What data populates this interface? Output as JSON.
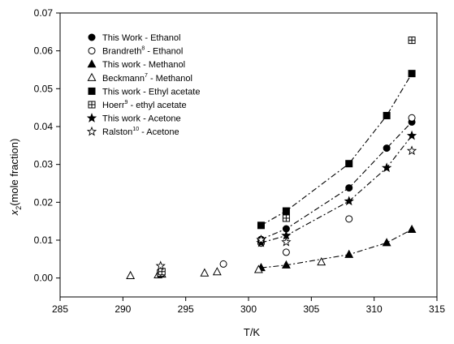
{
  "chart_data": {
    "type": "scatter",
    "xlabel": "T/K",
    "ylabel": "x",
    "ylabel_sub": "2",
    "ylabel_rest": "(mole fraction)",
    "xlim": [
      285,
      315
    ],
    "ylim": [
      -0.005,
      0.07
    ],
    "xticks": [
      285,
      290,
      295,
      300,
      305,
      310,
      315
    ],
    "xtick_labels": [
      "285",
      "290",
      "295",
      "300",
      "305",
      "310",
      "315"
    ],
    "yticks": [
      0.0,
      0.01,
      0.02,
      0.03,
      0.04,
      0.05,
      0.06,
      0.07
    ],
    "ytick_labels": [
      "0.00",
      "0.01",
      "0.02",
      "0.03",
      "0.04",
      "0.05",
      "0.06",
      "0.07"
    ],
    "grid": false,
    "legend_position": "top-left",
    "series": [
      {
        "name": "This Work - Ethanol",
        "name_pre": "This Work - Ethanol",
        "sup": "",
        "name_post": "",
        "marker": "circle-filled",
        "line": "dashdot",
        "x": [
          301,
          303,
          308,
          311,
          313
        ],
        "y": [
          0.0102,
          0.013,
          0.0238,
          0.0343,
          0.0412
        ]
      },
      {
        "name": "Brandreth8 - Ethanol",
        "name_pre": "Brandreth",
        "sup": "8",
        "name_post": " - Ethanol",
        "marker": "circle-open",
        "line": "none",
        "x": [
          298,
          301,
          303,
          308,
          313
        ],
        "y": [
          0.0037,
          0.0092,
          0.0068,
          0.0156,
          0.0423
        ]
      },
      {
        "name": "This work - Methanol",
        "name_pre": "This work - Methanol",
        "sup": "",
        "name_post": "",
        "marker": "triangle-filled",
        "line": "dashdot",
        "x": [
          301,
          303,
          308,
          311,
          313
        ],
        "y": [
          0.0027,
          0.0034,
          0.0062,
          0.0093,
          0.0128
        ]
      },
      {
        "name": "Beckmann7 - Methanol",
        "name_pre": "Beckmann",
        "sup": "7",
        "name_post": " - Methanol",
        "marker": "triangle-open",
        "line": "none",
        "x": [
          290.6,
          292.8,
          293.1,
          296.5,
          297.5,
          300.8,
          305.8
        ],
        "y": [
          0.0006,
          0.0008,
          0.001,
          0.0013,
          0.0016,
          0.0022,
          0.0042
        ]
      },
      {
        "name": "This work - Ethyl acetate",
        "name_pre": "This work - Ethyl acetate",
        "sup": "",
        "name_post": "",
        "marker": "square-filled",
        "line": "dashdot",
        "x": [
          301,
          303,
          308,
          311,
          313
        ],
        "y": [
          0.0139,
          0.0177,
          0.0302,
          0.0429,
          0.054
        ]
      },
      {
        "name": "Hoerr9 - ethyl acetate",
        "name_pre": "Hoerr",
        "sup": "9",
        "name_post": " - ethyl acetate",
        "marker": "square-cross",
        "line": "none",
        "x": [
          293,
          293.1,
          303,
          313
        ],
        "y": [
          0.0013,
          0.0017,
          0.0158,
          0.0628
        ]
      },
      {
        "name": "This work - Acetone",
        "name_pre": "This work - Acetone",
        "sup": "",
        "name_post": "",
        "marker": "star-filled",
        "line": "dashdot",
        "x": [
          301,
          303,
          308,
          311,
          313
        ],
        "y": [
          0.0093,
          0.0112,
          0.0203,
          0.0291,
          0.0376
        ]
      },
      {
        "name": "Ralston10 - Acetone",
        "name_pre": "Ralston",
        "sup": "10",
        "name_post": " - Acetone",
        "marker": "star-open",
        "line": "none",
        "x": [
          293,
          301,
          303,
          313
        ],
        "y": [
          0.0032,
          0.0101,
          0.0095,
          0.0336
        ]
      }
    ]
  }
}
